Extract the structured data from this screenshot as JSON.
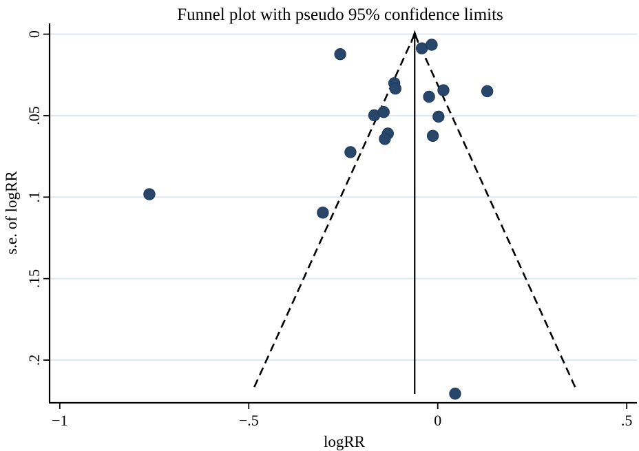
{
  "chart_data": {
    "type": "scatter",
    "title": "Funnel plot with pseudo 95% confidence limits",
    "xlabel": "logRR",
    "ylabel": "s.e. of logRR",
    "legend": "none",
    "x_axis": {
      "min": -1.027,
      "max": 0.527,
      "tick_values": [
        -1,
        -0.5,
        0,
        0.5
      ],
      "tick_labels": [
        "−1",
        "−.5",
        "0",
        ".5"
      ]
    },
    "y_axis": {
      "min": -0.0066,
      "max": 0.2262,
      "inverted_direction": "se increases downward",
      "tick_values": [
        0,
        0.05,
        0.1,
        0.15,
        0.2
      ],
      "tick_labels": [
        "0",
        ".05",
        ".1",
        ".15",
        ".2"
      ],
      "grid": true
    },
    "pseudo_ci": {
      "center_logRR": -0.061,
      "z": 1.96,
      "dashed_line_max_se": 0.219,
      "center_line_max_se": 0.2207
    },
    "points": [
      {
        "x": -0.258,
        "se": 0.0123
      },
      {
        "x": -0.042,
        "se": 0.0087
      },
      {
        "x": -0.016,
        "se": 0.0065
      },
      {
        "x": -0.115,
        "se": 0.0301
      },
      {
        "x": -0.112,
        "se": 0.0334
      },
      {
        "x": -0.023,
        "se": 0.0384
      },
      {
        "x": 0.015,
        "se": 0.0344
      },
      {
        "x": 0.131,
        "se": 0.035
      },
      {
        "x": -0.168,
        "se": 0.0498
      },
      {
        "x": -0.143,
        "se": 0.0478
      },
      {
        "x": -0.132,
        "se": 0.061
      },
      {
        "x": -0.14,
        "se": 0.0643
      },
      {
        "x": 0.002,
        "se": 0.0506
      },
      {
        "x": -0.013,
        "se": 0.0624
      },
      {
        "x": -0.231,
        "se": 0.0724
      },
      {
        "x": -0.763,
        "se": 0.0982
      },
      {
        "x": -0.304,
        "se": 0.1095
      },
      {
        "x": 0.046,
        "se": 0.2206
      }
    ],
    "colors": {
      "marker": "#284669",
      "marker_edge": "#1d3a5d",
      "grid": "#dde9f1",
      "axis": "#000000",
      "dashed_ci_line": "#000000",
      "center_line": "#000000",
      "background": "#ffffff"
    }
  }
}
